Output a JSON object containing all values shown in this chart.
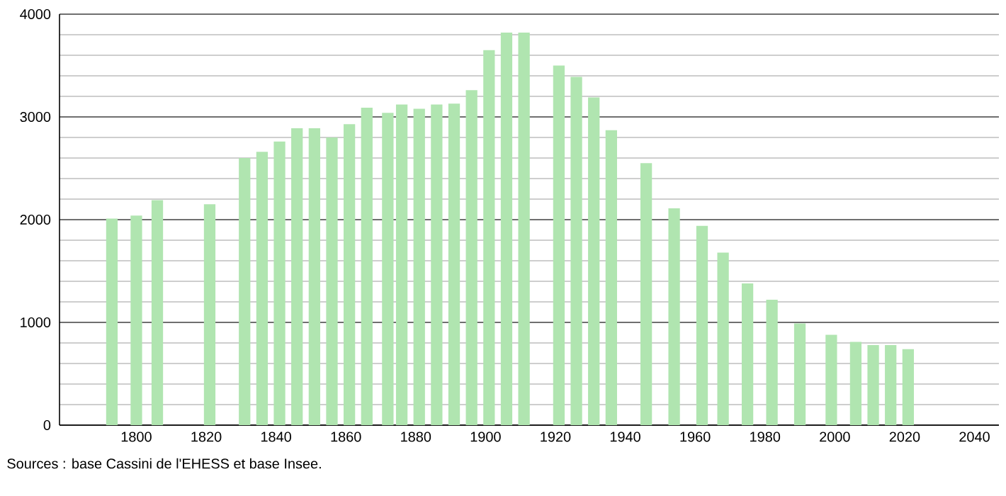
{
  "chart_data": {
    "type": "bar",
    "x": [
      1793,
      1800,
      1806,
      1821,
      1831,
      1836,
      1841,
      1846,
      1851,
      1856,
      1861,
      1866,
      1872,
      1876,
      1881,
      1886,
      1891,
      1896,
      1901,
      1906,
      1911,
      1921,
      1926,
      1931,
      1936,
      1946,
      1954,
      1962,
      1968,
      1975,
      1982,
      1990,
      1999,
      2006,
      2011,
      2016,
      2021
    ],
    "values": [
      2010,
      2040,
      2190,
      2150,
      2600,
      2660,
      2760,
      2890,
      2890,
      2800,
      2930,
      3090,
      3040,
      3120,
      3080,
      3120,
      3130,
      3260,
      3650,
      3820,
      3820,
      3500,
      3390,
      3190,
      2870,
      2550,
      2110,
      1940,
      1680,
      1380,
      1220,
      990,
      880,
      810,
      780,
      780,
      740
    ],
    "color": "#b0e5b0",
    "xlim": [
      1778,
      2047
    ],
    "xticks": [
      1800,
      1820,
      1840,
      1860,
      1880,
      1900,
      1920,
      1940,
      1960,
      1980,
      2000,
      2020,
      2040
    ],
    "ylim": [
      0,
      4000
    ],
    "yticks": [
      0,
      1000,
      2000,
      3000,
      4000
    ],
    "grid": "y",
    "annotations": [
      "Sources : base Cassini de l'EHESS et base Insee."
    ]
  }
}
